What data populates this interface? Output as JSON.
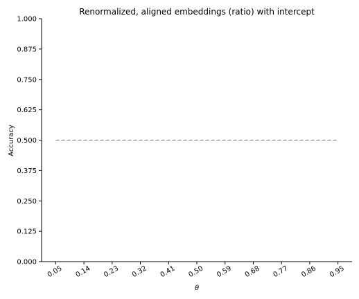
{
  "chart_data": {
    "type": "line",
    "title": "Renormalized, aligned embeddings (ratio) with intercept",
    "xlabel": "θ",
    "ylabel": "Accuracy",
    "x_ticks": [
      "0.05",
      "0.14",
      "0.23",
      "0.32",
      "0.41",
      "0.50",
      "0.59",
      "0.68",
      "0.77",
      "0.86",
      "0.95"
    ],
    "y_ticks": [
      "0.000",
      "0.125",
      "0.250",
      "0.375",
      "0.500",
      "0.625",
      "0.750",
      "0.875",
      "1.000"
    ],
    "ylim": [
      0,
      1
    ],
    "xlim": [
      0.005,
      0.995
    ],
    "grid": false,
    "series": [
      {
        "style": "dashed",
        "color": "#808080",
        "x": [
          0.05,
          0.95
        ],
        "values": [
          0.5,
          0.5
        ]
      }
    ]
  }
}
